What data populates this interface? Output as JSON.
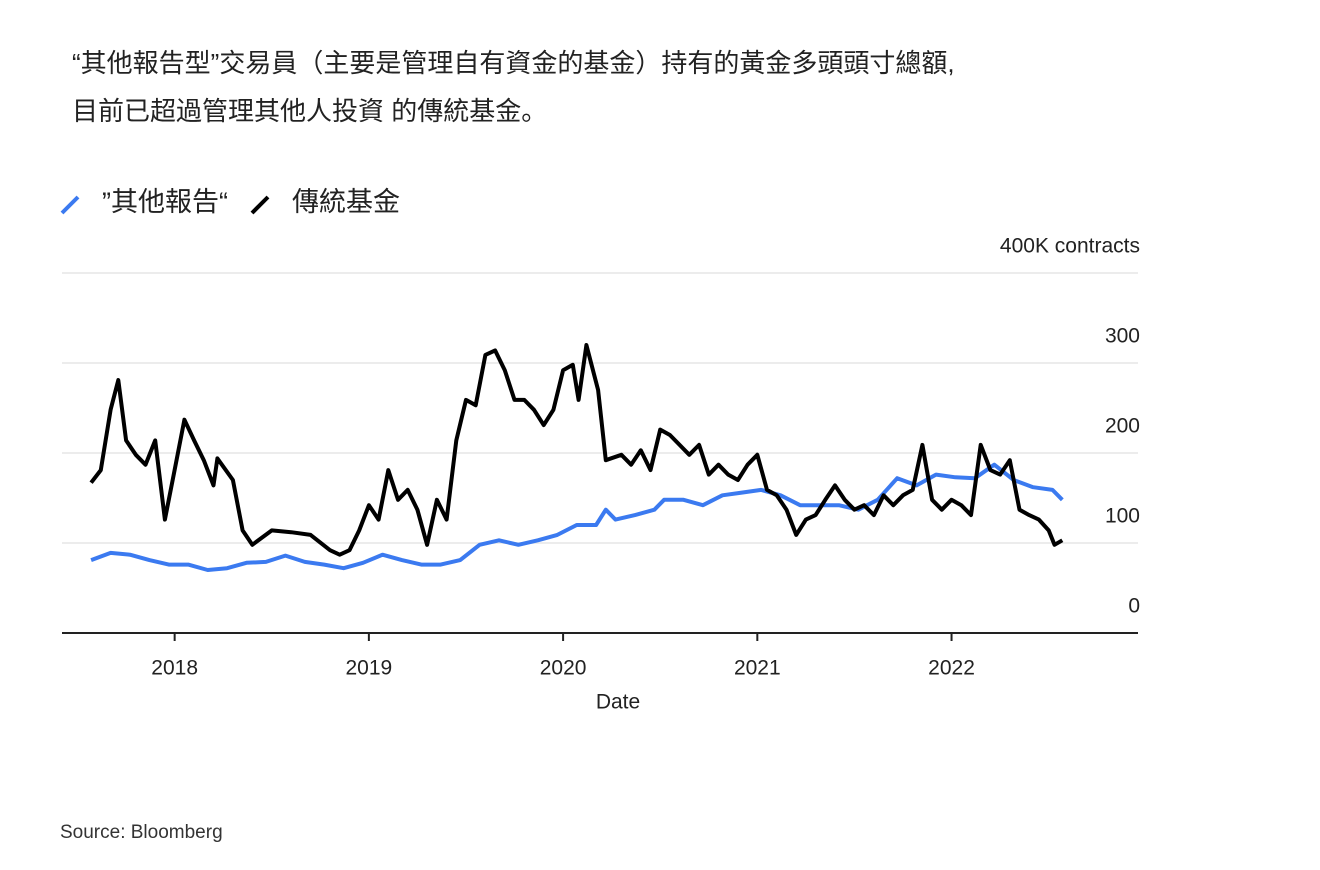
{
  "chart_data": {
    "type": "line",
    "title": [
      "“其他報告型”交易員（主要是管理自有資金的基金）持有的黃金多頭頭寸總額,",
      "目前已超過管理其他人投資 的傳統基金。"
    ],
    "x_label": "Date",
    "source": "Source: Bloomberg",
    "xlim": [
      2017.42,
      2022.96
    ],
    "xticks": [
      2018,
      2019,
      2020,
      2021,
      2022
    ],
    "ylim": [
      0,
      400
    ],
    "yticks": [
      0,
      100,
      200,
      300,
      {
        "value": 400,
        "label": "400K contracts"
      }
    ],
    "grid": true,
    "legend": "top-left",
    "series": [
      {
        "name": "”其他報告“",
        "color": "#3b7af0",
        "x": [
          2017.57,
          2017.67,
          2017.77,
          2017.87,
          2017.97,
          2018.07,
          2018.17,
          2018.27,
          2018.37,
          2018.47,
          2018.57,
          2018.67,
          2018.77,
          2018.87,
          2018.97,
          2019.07,
          2019.17,
          2019.27,
          2019.37,
          2019.47,
          2019.57,
          2019.67,
          2019.77,
          2019.87,
          2019.97,
          2020.07,
          2020.17,
          2020.22,
          2020.27,
          2020.37,
          2020.47,
          2020.52,
          2020.62,
          2020.72,
          2020.82,
          2020.92,
          2021.02,
          2021.12,
          2021.22,
          2021.32,
          2021.42,
          2021.52,
          2021.62,
          2021.72,
          2021.82,
          2021.92,
          2022.02,
          2022.12,
          2022.22,
          2022.32,
          2022.42,
          2022.52,
          2022.57
        ],
        "values": [
          81,
          89,
          87,
          81,
          76,
          76,
          70,
          72,
          78,
          79,
          86,
          79,
          76,
          72,
          78,
          87,
          81,
          76,
          76,
          81,
          98,
          103,
          98,
          103,
          109,
          120,
          120,
          137,
          126,
          131,
          137,
          148,
          148,
          142,
          153,
          156,
          159,
          153,
          142,
          142,
          142,
          137,
          148,
          172,
          164,
          176,
          173,
          172,
          187,
          170,
          162,
          159,
          148
        ]
      },
      {
        "name": "傳統基金",
        "color": "#000000",
        "x": [
          2017.57,
          2017.62,
          2017.67,
          2017.71,
          2017.75,
          2017.8,
          2017.85,
          2017.9,
          2017.95,
          2018.0,
          2018.05,
          2018.1,
          2018.15,
          2018.2,
          2018.22,
          2018.3,
          2018.35,
          2018.4,
          2018.5,
          2018.6,
          2018.7,
          2018.8,
          2018.85,
          2018.9,
          2018.95,
          2019.0,
          2019.05,
          2019.1,
          2019.15,
          2019.2,
          2019.25,
          2019.3,
          2019.35,
          2019.4,
          2019.45,
          2019.5,
          2019.55,
          2019.6,
          2019.65,
          2019.7,
          2019.75,
          2019.8,
          2019.85,
          2019.9,
          2019.95,
          2020.0,
          2020.05,
          2020.08,
          2020.12,
          2020.18,
          2020.22,
          2020.3,
          2020.35,
          2020.4,
          2020.45,
          2020.5,
          2020.55,
          2020.6,
          2020.65,
          2020.7,
          2020.75,
          2020.8,
          2020.85,
          2020.9,
          2020.95,
          2021.0,
          2021.05,
          2021.1,
          2021.15,
          2021.2,
          2021.25,
          2021.3,
          2021.35,
          2021.4,
          2021.45,
          2021.5,
          2021.55,
          2021.6,
          2021.65,
          2021.7,
          2021.75,
          2021.8,
          2021.85,
          2021.9,
          2021.95,
          2022.0,
          2022.05,
          2022.1,
          2022.15,
          2022.2,
          2022.25,
          2022.3,
          2022.35,
          2022.4,
          2022.45,
          2022.5,
          2022.53,
          2022.57
        ],
        "values": [
          167,
          181,
          248,
          281,
          214,
          198,
          187,
          214,
          126,
          181,
          237,
          214,
          192,
          164,
          194,
          170,
          114,
          98,
          114,
          112,
          109,
          92,
          87,
          92,
          114,
          142,
          126,
          181,
          148,
          159,
          137,
          98,
          148,
          126,
          214,
          259,
          253,
          309,
          314,
          292,
          259,
          259,
          248,
          231,
          248,
          292,
          298,
          259,
          320,
          270,
          192,
          198,
          187,
          203,
          181,
          226,
          220,
          209,
          198,
          209,
          176,
          187,
          176,
          170,
          187,
          198,
          159,
          153,
          137,
          109,
          126,
          131,
          148,
          164,
          148,
          137,
          142,
          131,
          153,
          142,
          153,
          159,
          209,
          148,
          137,
          148,
          142,
          131,
          209,
          181,
          176,
          192,
          137,
          131,
          126,
          114,
          98,
          103
        ]
      }
    ]
  }
}
